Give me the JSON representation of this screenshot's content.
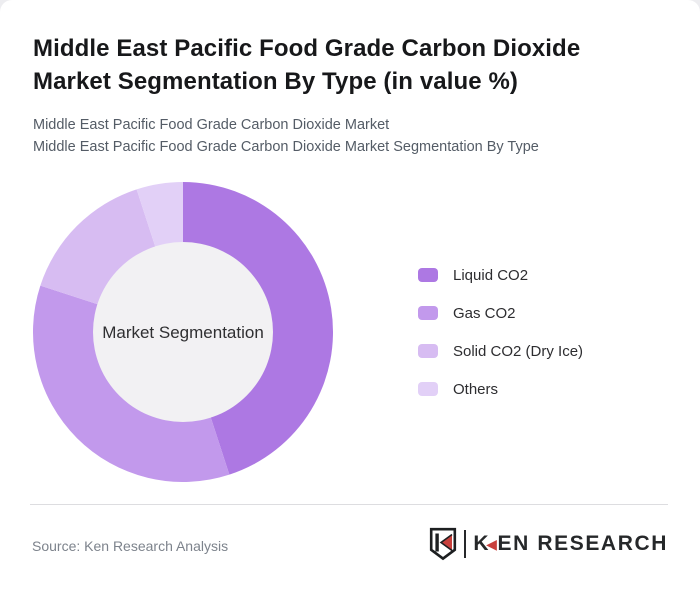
{
  "theme": {
    "page-bg": "#ffffff",
    "outer-bg": "#ededf0",
    "title": "#17181a",
    "subtitle": "#545c66",
    "divider": "#dddde0",
    "source": "#7d838c",
    "inner-circle": "#f2f1f3",
    "center-label": "#2f2f31",
    "logo-dark": "#26282a",
    "logo-red": "#c8403c"
  },
  "header": {
    "title_line1": "Middle East Pacific Food Grade Carbon Dioxide",
    "title_line2": "Market Segmentation By Type (in value %)",
    "subtitle_line1": "Middle East Pacific Food Grade Carbon Dioxide Market",
    "subtitle_line2": "Middle East Pacific Food Grade Carbon Dioxide Market Segmentation By Type"
  },
  "chart_data": {
    "type": "pie",
    "variant": "donut",
    "title": "Middle East Pacific Food Grade Carbon Dioxide Market Segmentation By Type (in value %)",
    "units": "value %",
    "center_label": "Market Segmentation",
    "start_angle_deg_from_top": 0,
    "direction": "clockwise",
    "outer_radius_px": 150,
    "inner_radius_px": 90,
    "inner_circle_color": "#f2f1f3",
    "legend_position": "right",
    "segments": [
      {
        "label": "Liquid CO2",
        "value": 45,
        "color": "#ad78e3"
      },
      {
        "label": "Gas CO2",
        "value": 35,
        "color": "#c299ec"
      },
      {
        "label": "Solid CO2 (Dry Ice)",
        "value": 15,
        "color": "#d7bcf2"
      },
      {
        "label": "Others",
        "value": 5,
        "color": "#e2d0f7"
      }
    ]
  },
  "footer": {
    "source": "Source: Ken Research Analysis",
    "logo": {
      "text_first": "K",
      "text_rest": "EN RESEARCH",
      "accent_red": "#c8403c",
      "dark": "#26282a"
    }
  }
}
